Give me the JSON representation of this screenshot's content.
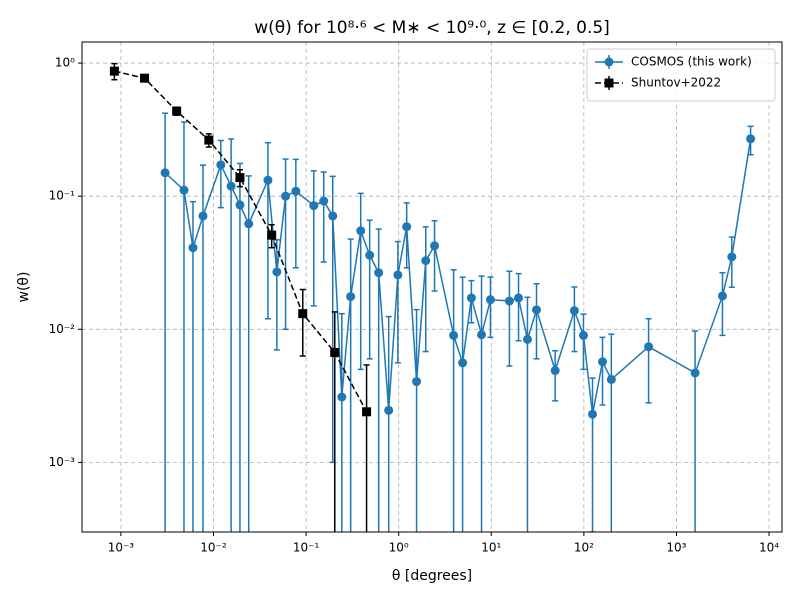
{
  "chart_data": {
    "type": "errorbar",
    "title": "w(θ) for 10⁸·⁶ < M∗ < 10⁹·⁰, z ∈ [0.2, 0.5]",
    "xlabel": "θ [degrees]",
    "ylabel": "w(θ)",
    "xscale": "log",
    "yscale": "log",
    "grid": true,
    "legend": "upper right",
    "xlim": [
      0.00038,
      13800
    ],
    "ylim": [
      0.0003,
      1.44
    ],
    "xticks": [
      {
        "value": 0.001,
        "label": "10⁻³"
      },
      {
        "value": 0.01,
        "label": "10⁻²"
      },
      {
        "value": 0.1,
        "label": "10⁻¹"
      },
      {
        "value": 1,
        "label": "10⁰"
      },
      {
        "value": 10,
        "label": "10¹"
      },
      {
        "value": 100,
        "label": "10²"
      },
      {
        "value": 1000,
        "label": "10³"
      },
      {
        "value": 10000,
        "label": "10⁴"
      }
    ],
    "yticks": [
      {
        "value": 0.001,
        "label": "10⁻³"
      },
      {
        "value": 0.01,
        "label": "10⁻²"
      },
      {
        "value": 0.1,
        "label": "10⁻¹"
      },
      {
        "value": 1,
        "label": "10⁰"
      }
    ],
    "series": [
      {
        "name": "COSMOS (this work)",
        "color": "#1f77b4",
        "marker": "o",
        "linestyle": "solid",
        "x": [
          0.003,
          0.0048,
          0.006,
          0.0077,
          0.012,
          0.0155,
          0.0193,
          0.024,
          0.0387,
          0.0483,
          0.06,
          0.0775,
          0.121,
          0.155,
          0.194,
          0.243,
          0.303,
          0.389,
          0.486,
          0.608,
          0.78,
          0.98,
          1.22,
          1.56,
          1.96,
          2.44,
          3.92,
          4.9,
          6.1,
          7.85,
          9.8,
          15.7,
          19.7,
          24.6,
          30.8,
          49,
          79,
          99,
          124,
          159,
          198,
          500,
          1590,
          3140,
          3960,
          6320
        ],
        "values": [
          0.15,
          0.111,
          0.041,
          0.071,
          0.172,
          0.119,
          0.086,
          0.062,
          0.132,
          0.027,
          0.1,
          0.109,
          0.085,
          0.092,
          0.071,
          0.0031,
          0.0176,
          0.055,
          0.036,
          0.0266,
          0.00246,
          0.0256,
          0.059,
          0.00405,
          0.0328,
          0.0424,
          0.009,
          0.0056,
          0.0172,
          0.0091,
          0.0167,
          0.0163,
          0.0172,
          0.0084,
          0.014,
          0.0049,
          0.0138,
          0.009,
          0.0023,
          0.0057,
          0.0042,
          0.0074,
          0.0047,
          0.0178,
          0.035,
          0.27
        ],
        "errors": [
          0.27,
          0.25,
          0.05,
          0.1,
          0.09,
          0.15,
          0.09,
          0.08,
          0.12,
          0.02,
          0.09,
          0.08,
          0.07,
          0.06,
          0.07,
          0.01,
          0.03,
          0.05,
          0.03,
          0.03,
          0.01,
          0.02,
          0.03,
          0.01,
          0.026,
          0.023,
          0.019,
          0.019,
          0.006,
          0.016,
          0.008,
          0.011,
          0.009,
          0.009,
          0.008,
          0.002,
          0.007,
          0.004,
          0.002,
          0.003,
          0.005,
          0.0046,
          0.005,
          0.0088,
          0.0143,
          0.065
        ]
      },
      {
        "name": "Shuntov+2022",
        "color": "#000000",
        "marker": "s",
        "linestyle": "dashed",
        "x": [
          0.00085,
          0.0018,
          0.004,
          0.0089,
          0.0193,
          0.0425,
          0.092,
          0.204,
          0.45
        ],
        "values": [
          0.87,
          0.77,
          0.436,
          0.264,
          0.138,
          0.051,
          0.0131,
          0.0067,
          0.0024
        ],
        "errors": [
          0.12,
          0.03,
          0.03,
          0.03,
          0.02,
          0.01,
          0.0068,
          0.0068,
          0.003
        ]
      }
    ]
  }
}
